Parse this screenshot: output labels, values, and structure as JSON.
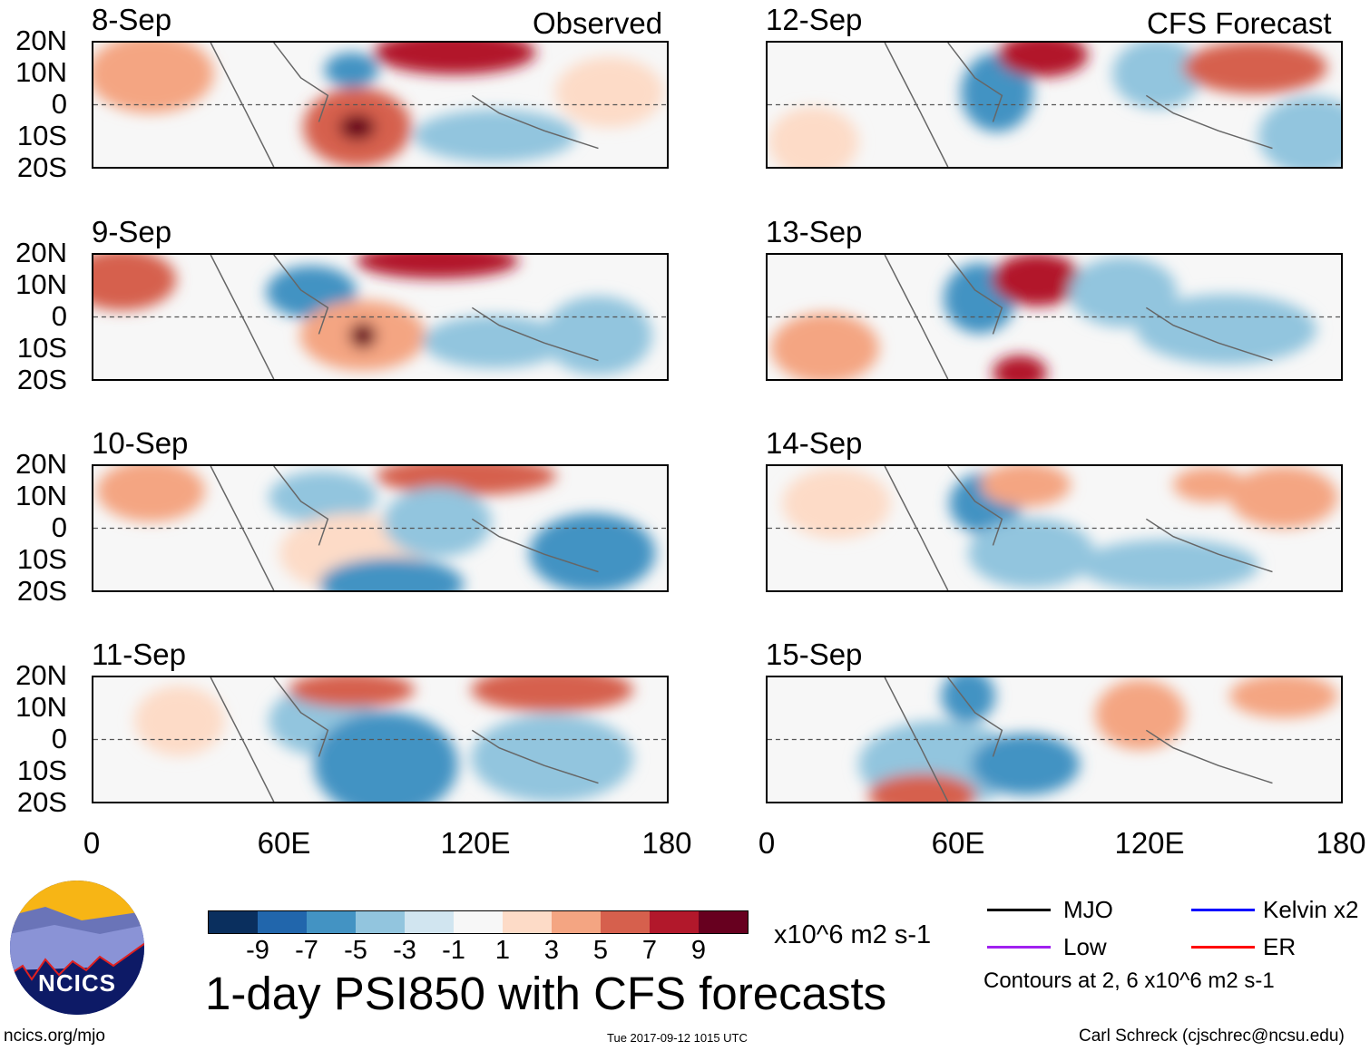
{
  "left_column_tag": "Observed",
  "right_column_tag": "CFS Forecast",
  "panels_left": [
    {
      "date": "8-Sep"
    },
    {
      "date": "9-Sep"
    },
    {
      "date": "10-Sep"
    },
    {
      "date": "11-Sep"
    }
  ],
  "panels_right": [
    {
      "date": "12-Sep"
    },
    {
      "date": "13-Sep"
    },
    {
      "date": "14-Sep"
    },
    {
      "date": "15-Sep"
    }
  ],
  "lat_labels": [
    "20N",
    "10N",
    "0",
    "10S",
    "20S"
  ],
  "lon_labels": [
    "0",
    "60E",
    "120E",
    "180"
  ],
  "colorbar": {
    "colors": [
      "#0a2f5e",
      "#2166ac",
      "#4393c3",
      "#92c5de",
      "#d1e5f0",
      "#f7f7f7",
      "#fddbc7",
      "#f4a582",
      "#d6604d",
      "#b2182b",
      "#67001f"
    ],
    "ticks": [
      "-9",
      "-7",
      "-5",
      "-3",
      "-1",
      "1",
      "3",
      "5",
      "7",
      "9"
    ],
    "units": "x10^6 m2 s-1"
  },
  "title": "1-day PSI850 with CFS forecasts",
  "legend": {
    "items": [
      {
        "label": "MJO",
        "color": "#000000"
      },
      {
        "label": "Kelvin x2",
        "color": "#0000ff"
      },
      {
        "label": "Low",
        "color": "#a020f0"
      },
      {
        "label": "ER",
        "color": "#ff0000"
      }
    ],
    "note": "Contours at 2, 6 x10^6 m2 s-1"
  },
  "logo": {
    "text": "NCICS"
  },
  "footer": {
    "left": "ncics.org/mjo",
    "center": "Tue 2017-09-12 1015 UTC",
    "right": "Carl Schreck (cjschrec@ncsu.edu)"
  }
}
